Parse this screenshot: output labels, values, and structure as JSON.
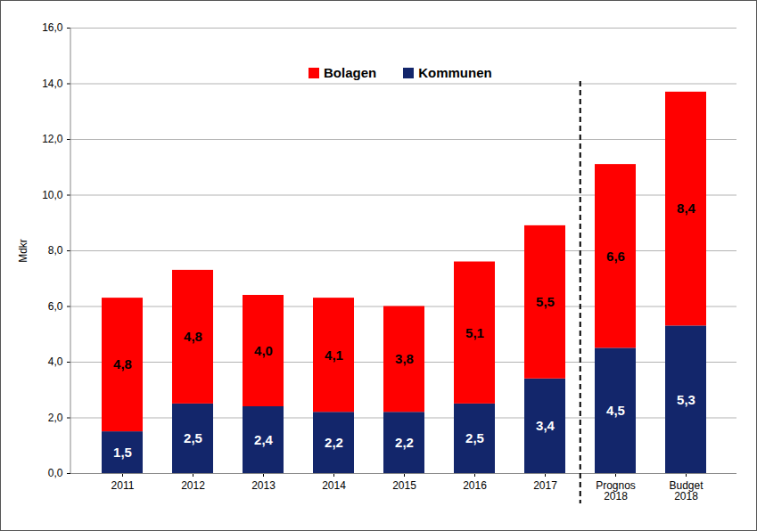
{
  "chart_data": {
    "type": "bar",
    "stacked": true,
    "data_labels": true,
    "grid": true,
    "legend": "top",
    "categories": [
      "2011",
      "2012",
      "2013",
      "2014",
      "2015",
      "2016",
      "2017",
      "Prognos 2018",
      "Budget 2018"
    ],
    "series": [
      {
        "name": "Bolagen",
        "color": "#ff0000",
        "values": [
          4.8,
          4.8,
          4.0,
          4.1,
          3.8,
          5.1,
          5.5,
          6.6,
          8.4
        ],
        "value_labels": [
          "4,8",
          "4,8",
          "4,0",
          "4,1",
          "3,8",
          "5,1",
          "5,5",
          "6,6",
          "8,4"
        ]
      },
      {
        "name": "Kommunen",
        "color": "#13266b",
        "values": [
          1.5,
          2.5,
          2.4,
          2.2,
          2.2,
          2.5,
          3.4,
          4.5,
          5.3
        ],
        "value_labels": [
          "1,5",
          "2,5",
          "2,4",
          "2,2",
          "2,2",
          "2,5",
          "3,4",
          "4,5",
          "5,3"
        ]
      }
    ],
    "y_label": "Mdkr",
    "ylim": [
      0,
      16
    ],
    "yticks": [
      {
        "value": 0,
        "label": "0,0"
      },
      {
        "value": 2,
        "label": "2,0"
      },
      {
        "value": 4,
        "label": "4,0"
      },
      {
        "value": 6,
        "label": "6,0"
      },
      {
        "value": 8,
        "label": "8,0"
      },
      {
        "value": 10,
        "label": "10,0"
      },
      {
        "value": 12,
        "label": "12,0"
      },
      {
        "value": 14,
        "label": "14,0"
      },
      {
        "value": 16,
        "label": "16,0"
      }
    ]
  }
}
